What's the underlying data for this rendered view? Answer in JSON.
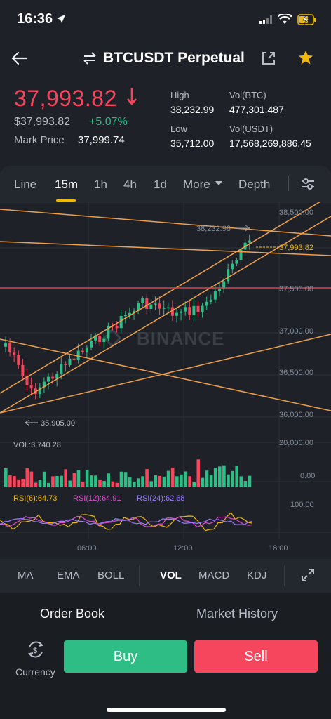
{
  "status": {
    "time": "16:36"
  },
  "header": {
    "title": "BTCUSDT Perpetual"
  },
  "ticker": {
    "last_price": "37,993.82",
    "price_usd": "$37,993.82",
    "change": "+5.07%",
    "mark_label": "Mark Price",
    "mark_value": "37,999.74",
    "high_label": "High",
    "high_value": "38,232.99",
    "low_label": "Low",
    "low_value": "35,712.00",
    "vol_btc_label": "Vol(BTC)",
    "vol_btc_value": "477,301.487",
    "vol_usdt_label": "Vol(USDT)",
    "vol_usdt_value": "17,568,269,886.45"
  },
  "toolbar": {
    "tabs": [
      "Line",
      "15m",
      "1h",
      "4h",
      "1d",
      "More",
      "Depth"
    ],
    "active_tab": "15m"
  },
  "chart": {
    "watermark": "BINANCE",
    "price_axis": [
      "38,500.00",
      "37,500.00",
      "37,000.00",
      "36,500.00",
      "36,000.00"
    ],
    "current_price_tag": "37,993.82",
    "high_marker": "38,232.98",
    "low_marker": "35,905.00",
    "vol_label": "VOL:3,740.28",
    "vol_axis": [
      "20,000.00",
      "0.00"
    ],
    "rsi6": "RSI(6):64.73",
    "rsi12": "RSI(12):64.91",
    "rsi24": "RSI(24):62.68",
    "rsi_axis": "100.00",
    "time_axis": [
      "06:00",
      "12:00",
      "18:00"
    ],
    "colors": {
      "up": "#2ebd85",
      "down": "#f6465d",
      "trendline": "#f0a04b",
      "rsi6": "#f0b90b",
      "rsi12": "#e04bd0",
      "rsi24": "#9b7bff"
    }
  },
  "chart_data": {
    "type": "candlestick",
    "y_range": [
      35800,
      38550
    ],
    "series": [
      {
        "name": "RSI(6)",
        "value": 64.73
      },
      {
        "name": "RSI(12)",
        "value": 64.91
      },
      {
        "name": "RSI(24)",
        "value": 62.68
      }
    ]
  },
  "indicators": {
    "items": [
      "MA",
      "EMA",
      "BOLL",
      "VOL",
      "MACD",
      "KDJ"
    ],
    "active": "VOL"
  },
  "book": {
    "order_book": "Order Book",
    "market_history": "Market History"
  },
  "actions": {
    "currency": "Currency",
    "buy": "Buy",
    "sell": "Sell"
  }
}
